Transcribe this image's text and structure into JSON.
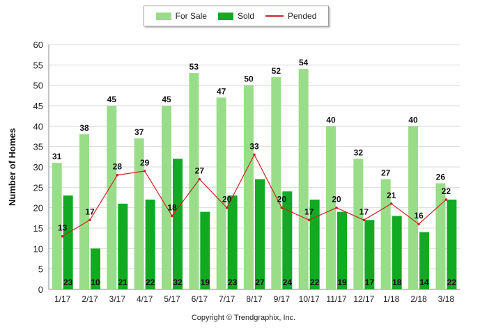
{
  "chart_data": {
    "type": "bar",
    "ylabel": "Number of Homes",
    "xlabel": "",
    "ylim": [
      0,
      60
    ],
    "yticks": [
      0,
      5,
      10,
      15,
      20,
      25,
      30,
      35,
      40,
      45,
      50,
      55,
      60
    ],
    "grid": true,
    "legend_position": "top-center",
    "categories": [
      "1/17",
      "2/17",
      "3/17",
      "4/17",
      "5/17",
      "6/17",
      "7/17",
      "8/17",
      "9/17",
      "10/17",
      "11/17",
      "12/17",
      "1/18",
      "2/18",
      "3/18"
    ],
    "series": [
      {
        "name": "For Sale",
        "type": "bar",
        "color": "#99dd88",
        "values": [
          31,
          38,
          45,
          37,
          45,
          53,
          47,
          50,
          52,
          54,
          40,
          32,
          27,
          40,
          26
        ]
      },
      {
        "name": "Sold",
        "type": "bar",
        "color": "#11aa22",
        "values": [
          23,
          10,
          21,
          22,
          32,
          19,
          23,
          27,
          24,
          22,
          19,
          17,
          18,
          14,
          22
        ]
      },
      {
        "name": "Pended",
        "type": "line",
        "color": "#cc2222",
        "values": [
          13,
          17,
          28,
          29,
          18,
          27,
          20,
          33,
          20,
          17,
          20,
          17,
          21,
          16,
          22
        ]
      }
    ]
  },
  "footer": {
    "copyright": "Copyright © Trendgraphix, Inc."
  }
}
